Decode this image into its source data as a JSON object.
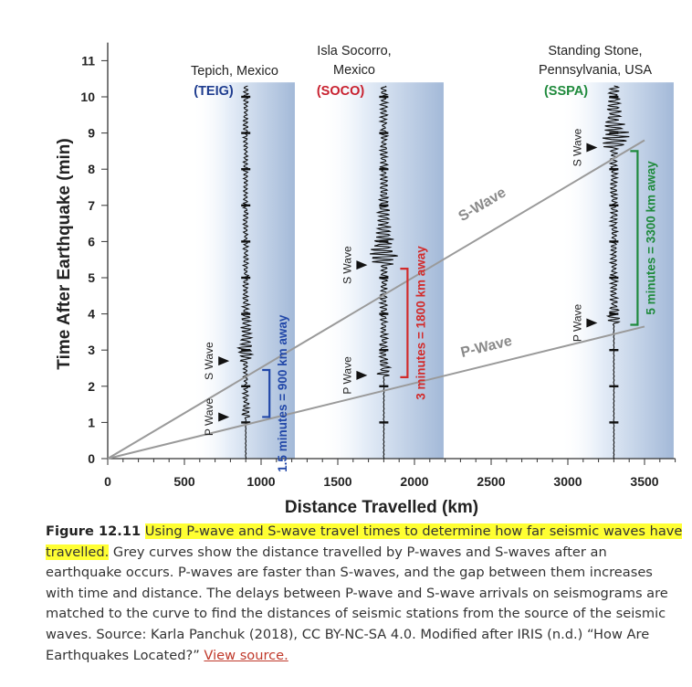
{
  "chart_data": {
    "type": "line",
    "title": "",
    "xlabel": "Distance Travelled (km)",
    "ylabel": "Time After Earthquake (min)",
    "xlim": [
      0,
      3700
    ],
    "ylim": [
      0,
      11.5
    ],
    "x_ticks": [
      0,
      500,
      1000,
      1500,
      2000,
      2500,
      3000,
      3500
    ],
    "y_ticks": [
      0,
      1,
      2,
      3,
      4,
      5,
      6,
      7,
      8,
      9,
      10,
      11
    ],
    "grid": false,
    "series": [
      {
        "name": "S-Wave",
        "color": "#9a9a9a",
        "x": [
          0,
          3500
        ],
        "y": [
          0,
          8.8
        ]
      },
      {
        "name": "P-Wave",
        "color": "#9a9a9a",
        "x": [
          0,
          3500
        ],
        "y": [
          0,
          3.65
        ]
      }
    ],
    "stations": [
      {
        "name": "Tepich, Mexico",
        "code": "(TEIG)",
        "code_color": "#1f3d8f",
        "distance_km": 900,
        "p_arrival_min": 1.15,
        "s_arrival_min": 2.7,
        "band": [
          550,
          1220
        ],
        "gap_label": "1.5 minutes = 900 km away",
        "gap_color": "#2147a8",
        "p_label": "P Wave",
        "s_label": "S Wave",
        "wave_amp": 0.55,
        "wave_max": 10.3
      },
      {
        "name_lines": [
          "Isla Socorro,",
          "Mexico"
        ],
        "code": "(SOCO)",
        "code_color": "#c8202e",
        "distance_km": 1800,
        "p_arrival_min": 2.3,
        "s_arrival_min": 5.35,
        "band": [
          1380,
          2190
        ],
        "gap_label": "3 minutes = 1800 km away",
        "gap_color": "#d22b2b",
        "p_label": "P Wave",
        "s_label": "S Wave",
        "wave_amp": 1.0,
        "wave_max": 10.3
      },
      {
        "name_lines": [
          "Standing Stone,",
          "Pennsylvania, USA"
        ],
        "code": "(SSPA)",
        "code_color": "#1f8a3c",
        "distance_km": 3300,
        "p_arrival_min": 3.75,
        "s_arrival_min": 8.6,
        "band": [
          2950,
          3690
        ],
        "gap_label": "5 minutes = 3300 km away",
        "gap_color": "#1f8a3c",
        "p_label": "P Wave",
        "s_label": "S Wave",
        "wave_amp": 1.0,
        "wave_max": 10.3
      }
    ],
    "annotations": {
      "s_wave_label": "S-Wave",
      "p_wave_label": "P-Wave"
    }
  },
  "caption": {
    "figure_label": "Figure 12.11",
    "highlight_text": "Using P-wave and S-wave travel times to determine how far seismic waves have travelled.",
    "body_text": " Grey curves show the distance travelled by P-waves and S-waves after an earthquake occurs. P-waves are faster than S-waves, and the gap between them increases with time and distance. The delays between P-wave and S-wave arrivals on seismograms are matched to the curve to find the distances of seismic stations from the source of the seismic waves. Source: Karla Panchuk (2018), CC BY-NC-SA 4.0. Modified after IRIS (n.d.) “How Are Earthquakes Located?” ",
    "link_text": "View source."
  }
}
